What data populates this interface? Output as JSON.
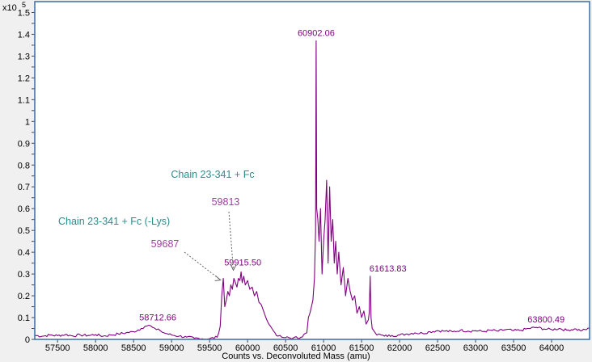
{
  "chart_data": {
    "type": "line",
    "xlabel": "Counts vs. Deconvoluted Mass (amu)",
    "y_multiplier": {
      "base": "x10",
      "exponent": "5"
    },
    "xlim": [
      57200,
      64500
    ],
    "ylim": [
      0,
      1.55
    ],
    "x_ticks": [
      57500,
      58000,
      58500,
      59000,
      59500,
      60000,
      60500,
      61000,
      61500,
      62000,
      62500,
      63000,
      63500,
      64000
    ],
    "x_tick_labels": [
      "57500",
      "58000",
      "58500",
      "59000",
      "59500",
      "60000",
      "60500",
      "61000",
      "61500",
      "62000",
      "62500",
      "63000",
      "63500",
      "64000"
    ],
    "y_ticks": [
      0,
      0.05,
      0.1,
      0.15,
      0.2,
      0.25,
      0.3,
      0.35,
      0.4,
      0.45,
      0.5,
      0.55,
      0.6,
      0.65,
      0.7,
      0.75,
      0.8,
      0.85,
      0.9,
      0.95,
      1,
      1.05,
      1.1,
      1.15,
      1.2,
      1.25,
      1.3,
      1.35,
      1.4,
      1.45,
      1.5
    ],
    "y_tick_labels": [
      "0",
      "0.1",
      "0.2",
      "0.3",
      "0.4",
      "0.5",
      "0.6",
      "0.7",
      "0.8",
      "0.9",
      "1",
      "1.1",
      "1.2",
      "1.3",
      "1.4",
      "1.5"
    ],
    "y_tick_label_values": [
      0,
      0.1,
      0.2,
      0.3,
      0.4,
      0.5,
      0.6,
      0.7,
      0.8,
      0.9,
      1,
      1.1,
      1.2,
      1.3,
      1.4,
      1.5
    ],
    "grid": false,
    "series": [
      {
        "x": [
          57200,
          57300,
          57400,
          57500,
          57600,
          57700,
          57800,
          57900,
          58000,
          58100,
          58200,
          58300,
          58400,
          58500,
          58600,
          58650,
          58700,
          58750,
          58800,
          58850,
          58900,
          59000,
          59100,
          59200,
          59300,
          59400,
          59500,
          59600,
          59640,
          59660,
          59680,
          59700,
          59720,
          59740,
          59760,
          59780,
          59800,
          59820,
          59840,
          59860,
          59880,
          59900,
          59915,
          59930,
          59950,
          59970,
          60000,
          60030,
          60060,
          60090,
          60120,
          60150,
          60180,
          60210,
          60240,
          60280,
          60320,
          60360,
          60400,
          60450,
          60500,
          60600,
          60700,
          60780,
          60800,
          60820,
          60840,
          60860,
          60880,
          60895,
          60902,
          60910,
          60925,
          60940,
          60960,
          60980,
          61000,
          61020,
          61040,
          61060,
          61080,
          61100,
          61120,
          61140,
          61160,
          61180,
          61200,
          61230,
          61260,
          61290,
          61320,
          61350,
          61380,
          61410,
          61440,
          61470,
          61500,
          61530,
          61560,
          61590,
          61600,
          61613,
          61625,
          61640,
          61660,
          61680,
          61700,
          61730,
          61760,
          61800,
          61900,
          62000,
          62100,
          62200,
          62300,
          62400,
          62500,
          62600,
          62700,
          62800,
          62900,
          63000,
          63100,
          63200,
          63300,
          63400,
          63500,
          63600,
          63700,
          63800,
          63900,
          64000,
          64100,
          64200,
          64300,
          64400,
          64500
        ],
        "y": [
          0.018,
          0.015,
          0.02,
          0.017,
          0.022,
          0.016,
          0.02,
          0.018,
          0.022,
          0.015,
          0.02,
          0.025,
          0.03,
          0.035,
          0.05,
          0.06,
          0.065,
          0.055,
          0.045,
          0.04,
          0.03,
          0.02,
          0.015,
          0.01,
          0.005,
          0.003,
          0.003,
          0.01,
          0.06,
          0.2,
          0.28,
          0.15,
          0.18,
          0.22,
          0.2,
          0.25,
          0.23,
          0.28,
          0.26,
          0.24,
          0.28,
          0.27,
          0.31,
          0.26,
          0.29,
          0.25,
          0.27,
          0.23,
          0.24,
          0.2,
          0.22,
          0.17,
          0.16,
          0.13,
          0.1,
          0.07,
          0.05,
          0.03,
          0.015,
          0.01,
          0.008,
          0.006,
          0.01,
          0.03,
          0.1,
          0.12,
          0.15,
          0.18,
          0.28,
          0.5,
          1.37,
          0.6,
          0.55,
          0.45,
          0.6,
          0.3,
          0.45,
          0.55,
          0.73,
          0.35,
          0.7,
          0.45,
          0.55,
          0.35,
          0.45,
          0.3,
          0.4,
          0.25,
          0.33,
          0.2,
          0.28,
          0.22,
          0.18,
          0.2,
          0.12,
          0.15,
          0.1,
          0.13,
          0.07,
          0.09,
          0.12,
          0.29,
          0.1,
          0.05,
          0.04,
          0.03,
          0.02,
          0.025,
          0.02,
          0.015,
          0.018,
          0.02,
          0.025,
          0.03,
          0.028,
          0.035,
          0.04,
          0.038,
          0.035,
          0.042,
          0.038,
          0.04,
          0.036,
          0.042,
          0.038,
          0.045,
          0.04,
          0.042,
          0.05,
          0.055,
          0.048,
          0.045,
          0.05,
          0.042,
          0.048,
          0.04,
          0.05
        ],
        "color": "#800080"
      }
    ],
    "peak_labels": [
      {
        "text": "60902.06",
        "x": 60902,
        "y": 1.37
      },
      {
        "text": "59915.50",
        "x": 59915,
        "y": 0.31
      },
      {
        "text": "61613.83",
        "x": 61613,
        "y": 0.29
      },
      {
        "text": "58712.66",
        "x": 58712,
        "y": 0.065
      },
      {
        "text": "63800.49",
        "x": 63800,
        "y": 0.055
      }
    ],
    "annotations": [
      {
        "text": "Chain 23-341 + Fc",
        "color": "#2a8c8c"
      },
      {
        "text": "59813",
        "color": "#a040a0",
        "x": 59813,
        "y": 0.31
      },
      {
        "text": "Chain 23-341 + Fc (-Lys)",
        "color": "#2a8c8c"
      },
      {
        "text": "59687",
        "color": "#a040a0",
        "x": 59687,
        "y": 0.28
      }
    ],
    "colors": {
      "line": "#800080",
      "frame": "#3a6ea5",
      "peak_label": "#800080",
      "annotation_name": "#2a8c8c",
      "annotation_mass": "#a040a0",
      "plot_bg": "#ffffff",
      "page_bg": "#f0f0f0"
    }
  }
}
